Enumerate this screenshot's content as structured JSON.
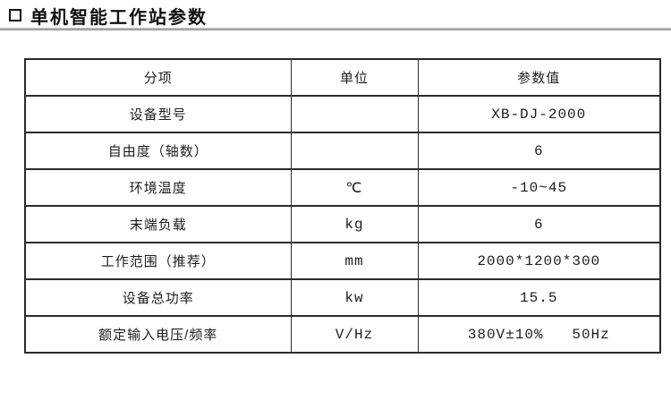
{
  "header": {
    "bullet_icon": "white-square-icon",
    "title": "单机智能工作站参数",
    "divider_color": "#9c9c9c"
  },
  "table": {
    "border_color": "#2b2b2b",
    "columns": {
      "item": "分项",
      "unit": "单位",
      "value": "参数值"
    },
    "rows": [
      {
        "item": "设备型号",
        "unit": "",
        "value": "XB-DJ-2000"
      },
      {
        "item": "自由度（轴数）",
        "unit": "",
        "value": "6"
      },
      {
        "item": "环境温度",
        "unit": "℃",
        "value": "-10~45"
      },
      {
        "item": "末端负载",
        "unit": "kg",
        "value": "6"
      },
      {
        "item": "工作范围（推荐）",
        "unit": "mm",
        "value": "2000*1200*300"
      },
      {
        "item": "设备总功率",
        "unit": "kw",
        "value": "15.5"
      },
      {
        "item": "额定输入电压/频率",
        "unit": "V/Hz",
        "value": "380V±10%   50Hz"
      }
    ]
  }
}
